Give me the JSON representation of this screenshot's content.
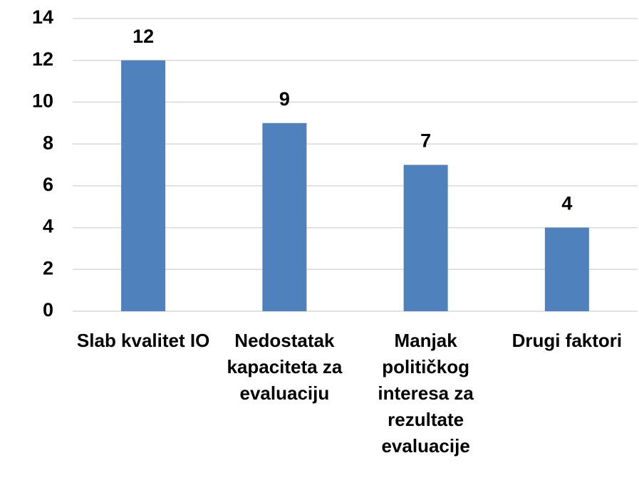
{
  "chart_data": {
    "type": "bar",
    "categories": [
      "Slab kvalitet IO",
      "Nedostatak kapaciteta za evaluaciju",
      "Manjak političkog interesa za rezultate evaluacije",
      "Drugi faktori"
    ],
    "values": [
      12,
      9,
      7,
      4
    ],
    "color": "#4f81bd",
    "ylim": [
      0,
      14
    ],
    "yticks": [
      0,
      2,
      4,
      6,
      8,
      10,
      12,
      14
    ],
    "grid": true
  }
}
